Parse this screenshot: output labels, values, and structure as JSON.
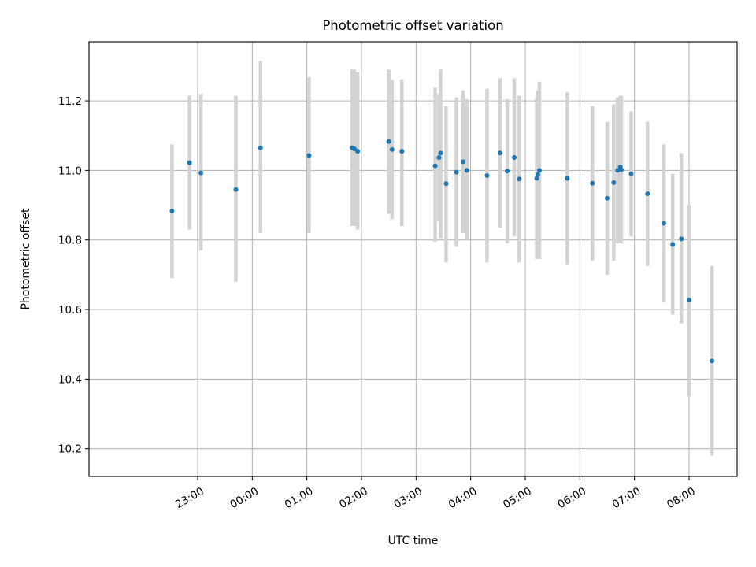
{
  "chart_data": {
    "type": "scatter",
    "title": "Photometric offset variation",
    "xlabel": "UTC time",
    "ylabel": "Photometric offset",
    "x_unit": "hours since 00:00 UTC (negative = previous day)",
    "xlim": [
      -2.99,
      8.88
    ],
    "ylim": [
      10.12,
      11.37
    ],
    "grid": true,
    "x_ticks": [
      {
        "value": -1,
        "label": "23:00"
      },
      {
        "value": 0,
        "label": "00:00"
      },
      {
        "value": 1,
        "label": "01:00"
      },
      {
        "value": 2,
        "label": "02:00"
      },
      {
        "value": 3,
        "label": "03:00"
      },
      {
        "value": 4,
        "label": "04:00"
      },
      {
        "value": 5,
        "label": "05:00"
      },
      {
        "value": 6,
        "label": "06:00"
      },
      {
        "value": 7,
        "label": "07:00"
      },
      {
        "value": 8,
        "label": "08:00"
      }
    ],
    "y_ticks": [
      {
        "value": 10.2,
        "label": "10.2"
      },
      {
        "value": 10.4,
        "label": "10.4"
      },
      {
        "value": 10.6,
        "label": "10.6"
      },
      {
        "value": 10.8,
        "label": "10.8"
      },
      {
        "value": 11.0,
        "label": "11.0"
      },
      {
        "value": 11.2,
        "label": "11.2"
      }
    ],
    "series": [
      {
        "name": "offset",
        "marker_color": "#1f77b4",
        "errorbar_color": "#d3d3d3",
        "points": [
          {
            "x": -1.47,
            "y": 10.883,
            "lo": 10.69,
            "hi": 11.075
          },
          {
            "x": -1.15,
            "y": 11.022,
            "lo": 10.83,
            "hi": 11.215
          },
          {
            "x": -0.94,
            "y": 10.993,
            "lo": 10.77,
            "hi": 11.22
          },
          {
            "x": -0.3,
            "y": 10.945,
            "lo": 10.68,
            "hi": 11.215
          },
          {
            "x": 0.15,
            "y": 11.065,
            "lo": 10.82,
            "hi": 11.315
          },
          {
            "x": 1.04,
            "y": 11.043,
            "lo": 10.82,
            "hi": 11.268
          },
          {
            "x": 1.83,
            "y": 11.065,
            "lo": 10.84,
            "hi": 11.29
          },
          {
            "x": 1.87,
            "y": 11.062,
            "lo": 10.84,
            "hi": 11.29
          },
          {
            "x": 1.93,
            "y": 11.055,
            "lo": 10.83,
            "hi": 11.282
          },
          {
            "x": 2.5,
            "y": 11.083,
            "lo": 10.875,
            "hi": 11.29
          },
          {
            "x": 2.56,
            "y": 11.06,
            "lo": 10.86,
            "hi": 11.26
          },
          {
            "x": 2.74,
            "y": 11.055,
            "lo": 10.84,
            "hi": 11.262
          },
          {
            "x": 3.35,
            "y": 11.013,
            "lo": 10.795,
            "hi": 11.238
          },
          {
            "x": 3.42,
            "y": 11.037,
            "lo": 10.855,
            "hi": 11.22
          },
          {
            "x": 3.45,
            "y": 11.05,
            "lo": 10.805,
            "hi": 11.29
          },
          {
            "x": 3.55,
            "y": 10.962,
            "lo": 10.735,
            "hi": 11.185
          },
          {
            "x": 3.74,
            "y": 10.995,
            "lo": 10.78,
            "hi": 11.21
          },
          {
            "x": 3.86,
            "y": 11.025,
            "lo": 10.82,
            "hi": 11.23
          },
          {
            "x": 3.93,
            "y": 11.0,
            "lo": 10.8,
            "hi": 11.205
          },
          {
            "x": 4.3,
            "y": 10.985,
            "lo": 10.735,
            "hi": 11.235
          },
          {
            "x": 4.54,
            "y": 11.05,
            "lo": 10.835,
            "hi": 11.265
          },
          {
            "x": 4.67,
            "y": 10.998,
            "lo": 10.79,
            "hi": 11.205
          },
          {
            "x": 4.8,
            "y": 11.037,
            "lo": 10.81,
            "hi": 11.265
          },
          {
            "x": 4.89,
            "y": 10.975,
            "lo": 10.735,
            "hi": 11.215
          },
          {
            "x": 5.21,
            "y": 10.977,
            "lo": 10.745,
            "hi": 11.21
          },
          {
            "x": 5.23,
            "y": 10.988,
            "lo": 10.745,
            "hi": 11.23
          },
          {
            "x": 5.26,
            "y": 11.0,
            "lo": 10.745,
            "hi": 11.255
          },
          {
            "x": 5.77,
            "y": 10.977,
            "lo": 10.73,
            "hi": 11.225
          },
          {
            "x": 6.23,
            "y": 10.963,
            "lo": 10.74,
            "hi": 11.185
          },
          {
            "x": 6.5,
            "y": 10.92,
            "lo": 10.7,
            "hi": 11.14
          },
          {
            "x": 6.62,
            "y": 10.965,
            "lo": 10.74,
            "hi": 11.19
          },
          {
            "x": 6.69,
            "y": 11.0,
            "lo": 10.79,
            "hi": 11.21
          },
          {
            "x": 6.74,
            "y": 11.01,
            "lo": 10.795,
            "hi": 11.215
          },
          {
            "x": 6.76,
            "y": 11.002,
            "lo": 10.79,
            "hi": 11.215
          },
          {
            "x": 6.94,
            "y": 10.99,
            "lo": 10.81,
            "hi": 11.17
          },
          {
            "x": 7.24,
            "y": 10.933,
            "lo": 10.725,
            "hi": 11.14
          },
          {
            "x": 7.54,
            "y": 10.848,
            "lo": 10.62,
            "hi": 11.075
          },
          {
            "x": 7.7,
            "y": 10.787,
            "lo": 10.585,
            "hi": 10.99
          },
          {
            "x": 7.86,
            "y": 10.803,
            "lo": 10.56,
            "hi": 11.05
          },
          {
            "x": 8.0,
            "y": 10.627,
            "lo": 10.35,
            "hi": 10.9
          },
          {
            "x": 8.42,
            "y": 10.452,
            "lo": 10.18,
            "hi": 10.725
          }
        ]
      }
    ]
  }
}
